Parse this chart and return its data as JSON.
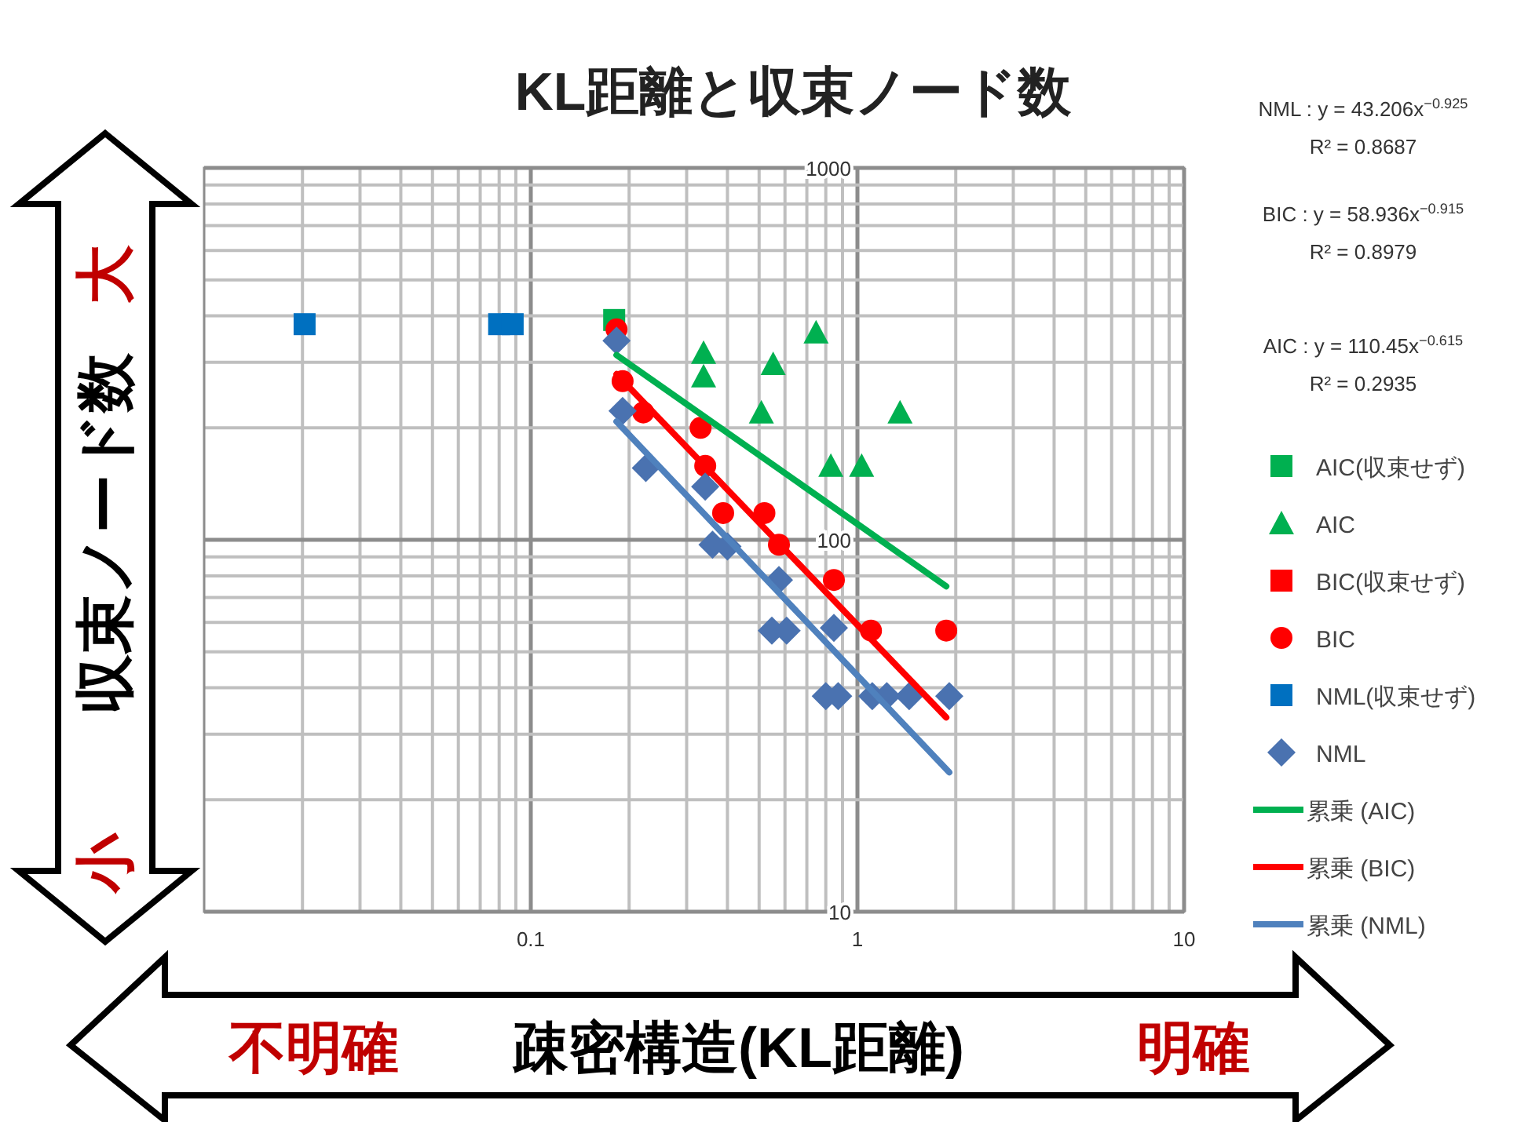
{
  "chart_data": {
    "type": "scatter",
    "title": "KL距離と収束ノード数",
    "xlabel": "疎密構造(KL距離)",
    "ylabel": "収束ノード数",
    "annotations": [
      "NML : y = 43.206x$^{−0.925}$",
      "R² = 0.8687",
      "BIC : y = 58.936x$^{−0.915}$",
      "R² = 0.8979",
      "AIC : y = 110.45x$^{−0.615}$",
      "R² = 0.2935",
      "大",
      "小",
      "不明確",
      "明確"
    ],
    "log": "xy",
    "xlim": [
      0.01,
      10
    ],
    "ylim": [
      10,
      1000
    ],
    "xticks": [
      0.1,
      1,
      10
    ],
    "yticks": [
      10,
      100,
      1000
    ],
    "grid": true,
    "legend": "right",
    "series": [
      {
        "name": "AIC(収束せず)",
        "marker": "square",
        "color": "#00b050",
        "x": [
          0.18
        ],
        "values": [
          390
        ]
      },
      {
        "name": "AIC",
        "marker": "triangle",
        "color": "#00b050",
        "x": [
          0.338,
          0.338,
          0.747,
          0.552,
          0.508,
          1.35,
          0.829,
          1.03
        ],
        "values": [
          318,
          275,
          361,
          297,
          220,
          220,
          158,
          158
        ]
      },
      {
        "name": "BIC(収束せず)",
        "marker": "square",
        "color": "#ff0000"
      },
      {
        "name": "BIC",
        "marker": "circle",
        "color": "#ff0000",
        "x": [
          0.183,
          0.191,
          0.221,
          0.331,
          0.342,
          0.388,
          0.519,
          0.575,
          0.847,
          1.1,
          1.87
        ],
        "values": [
          368,
          267,
          220,
          200,
          158,
          118,
          118,
          97,
          78,
          57,
          57
        ]
      },
      {
        "name": "NML(収束せず)",
        "marker": "square",
        "color": "#0070c0",
        "x": [
          0.0203,
          0.08,
          0.088
        ],
        "values": [
          380,
          380,
          380
        ]
      },
      {
        "name": "NML",
        "marker": "diamond",
        "color": "#4a72b0",
        "x": [
          0.183,
          0.191,
          0.225,
          0.342,
          0.36,
          0.4,
          0.575,
          0.547,
          0.607,
          0.847,
          0.8,
          0.873,
          1.11,
          1.23,
          1.44,
          1.91
        ],
        "values": [
          343,
          222,
          156,
          139,
          97,
          96,
          78,
          57,
          57,
          58,
          38,
          38,
          38,
          38,
          38,
          38
        ]
      },
      {
        "name": "累乗 (AIC)",
        "type": "line",
        "color": "#00b050",
        "x": [
          0.183,
          1.87
        ],
        "values": [
          314,
          75
        ]
      },
      {
        "name": "累乗 (BIC)",
        "type": "line",
        "color": "#ff0000",
        "x": [
          0.183,
          1.87
        ],
        "values": [
          279,
          33.3
        ]
      },
      {
        "name": "累乗 (NML)",
        "type": "line",
        "color": "#4f81bd",
        "x": [
          0.183,
          1.91
        ],
        "values": [
          208,
          23.7
        ]
      }
    ]
  }
}
